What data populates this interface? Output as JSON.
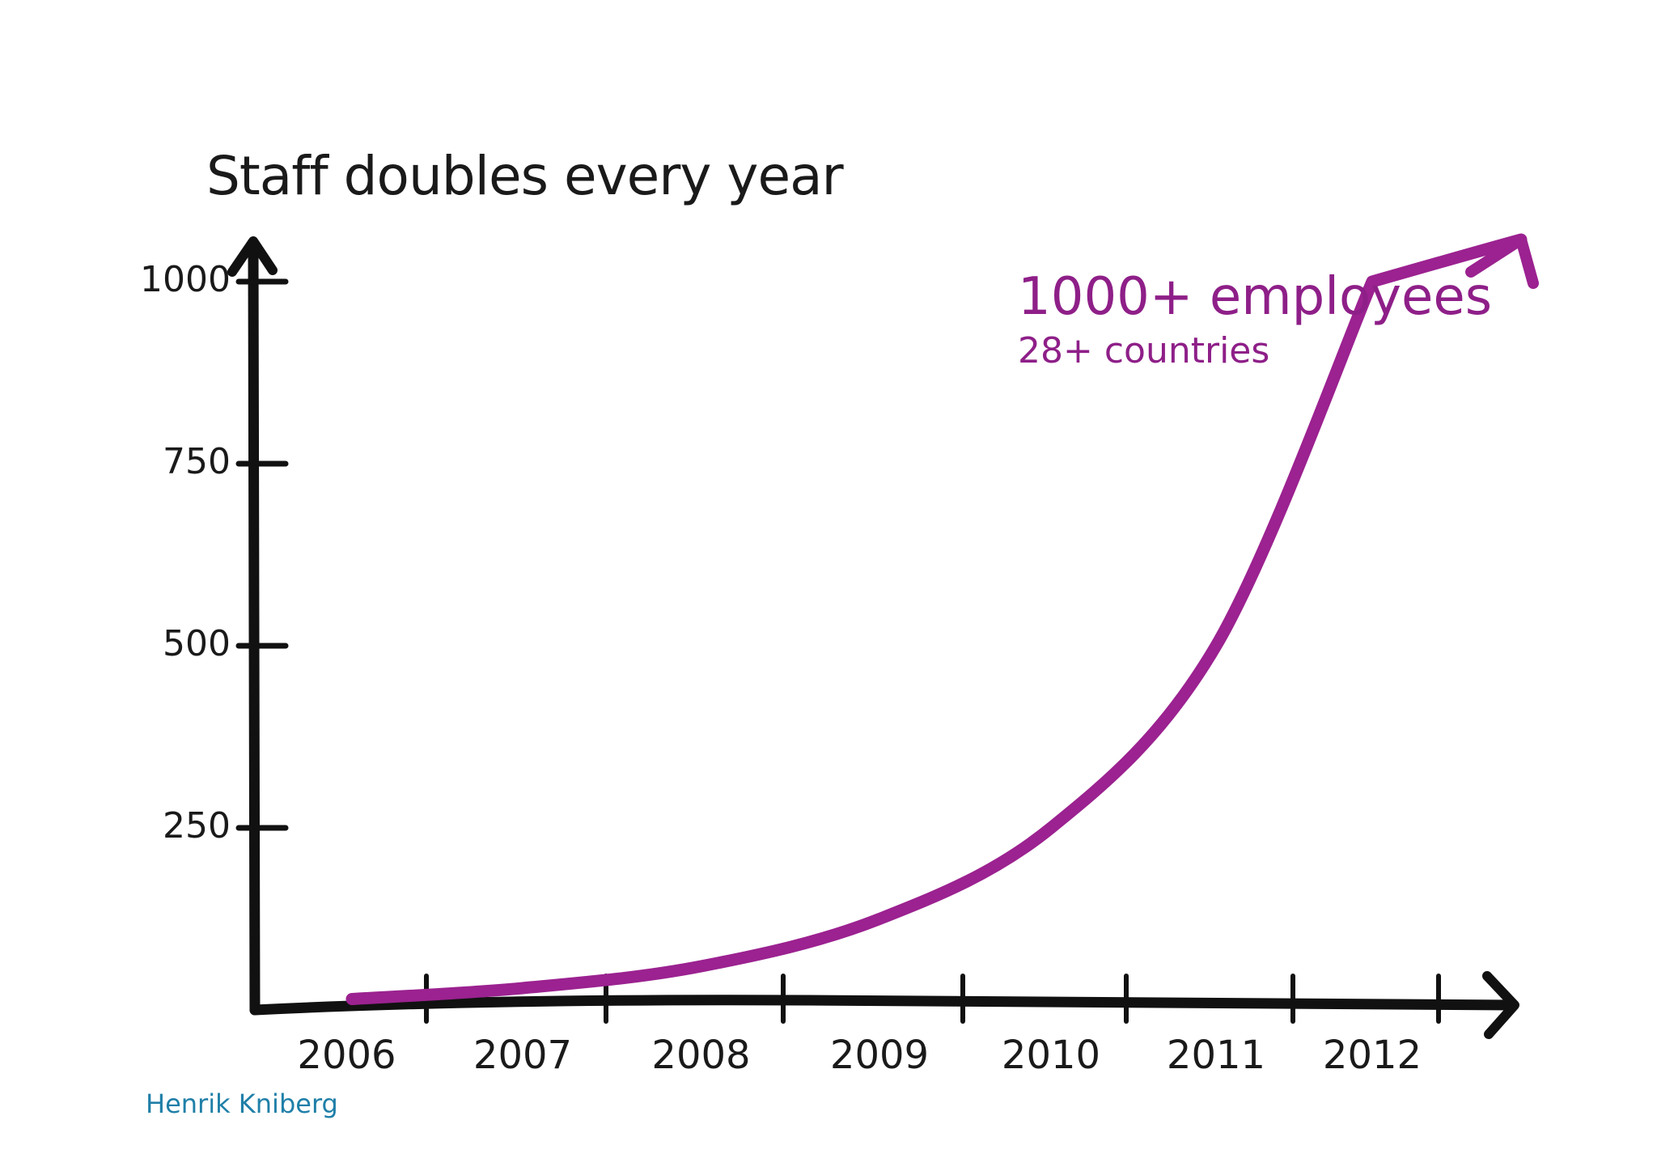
{
  "chart_data": {
    "type": "line",
    "title": "Staff doubles every year",
    "xlabel": "",
    "ylabel": "",
    "ylim": [
      0,
      1000
    ],
    "y_ticks": [
      {
        "value": 250,
        "label": "250"
      },
      {
        "value": 500,
        "label": "500"
      },
      {
        "value": 750,
        "label": "750"
      },
      {
        "value": 1000,
        "label": "1000"
      }
    ],
    "categories": [
      "2006",
      "2007",
      "2008",
      "2009",
      "2010",
      "2011",
      "2012"
    ],
    "series": [
      {
        "values": [
          15,
          30,
          60,
          125,
          250,
          500,
          1000
        ],
        "color": "#9b2290"
      }
    ],
    "annotations": [
      {
        "text": "1000+ employees",
        "role": "main"
      },
      {
        "text": "28+ countries",
        "role": "sub"
      }
    ],
    "grid": false,
    "legend": "none"
  },
  "credit": "Henrik Kniberg",
  "colors": {
    "axis": "#111111",
    "curve": "#9b2290",
    "annotation": "#8e1f88",
    "credit": "#1f7fa8"
  }
}
